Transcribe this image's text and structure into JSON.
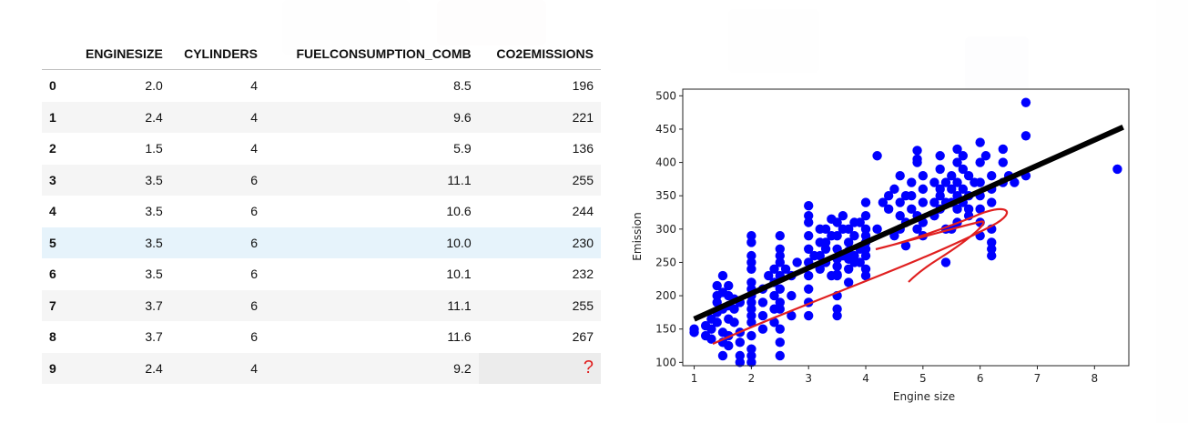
{
  "table": {
    "columns": [
      "",
      "ENGINESIZE",
      "CYLINDERS",
      "FUELCONSUMPTION_COMB",
      "CO2EMISSIONS"
    ],
    "rows": [
      [
        "0",
        "2.0",
        "4",
        "8.5",
        "196"
      ],
      [
        "1",
        "2.4",
        "4",
        "9.6",
        "221"
      ],
      [
        "2",
        "1.5",
        "4",
        "5.9",
        "136"
      ],
      [
        "3",
        "3.5",
        "6",
        "11.1",
        "255"
      ],
      [
        "4",
        "3.5",
        "6",
        "10.6",
        "244"
      ],
      [
        "5",
        "3.5",
        "6",
        "10.0",
        "230"
      ],
      [
        "6",
        "3.5",
        "6",
        "10.1",
        "232"
      ],
      [
        "7",
        "3.7",
        "6",
        "11.1",
        "255"
      ],
      [
        "8",
        "3.7",
        "6",
        "11.6",
        "267"
      ],
      [
        "9",
        "2.4",
        "4",
        "9.2",
        "?"
      ]
    ],
    "highlighted_row": 5,
    "unknown_marker_color": "#e02020"
  },
  "chart_data": {
    "type": "scatter",
    "xlabel": "Engine size",
    "ylabel": "Emission",
    "xlim": [
      0.8,
      8.6
    ],
    "ylim": [
      95,
      510
    ],
    "xticks": [
      1,
      2,
      3,
      4,
      5,
      6,
      7,
      8
    ],
    "yticks": [
      100,
      150,
      200,
      250,
      300,
      350,
      400,
      450,
      500
    ],
    "grid": false,
    "point_color": "#0000ff",
    "fit_line": {
      "x": [
        1.0,
        8.5
      ],
      "y": [
        165,
        453
      ],
      "color": "#000000"
    },
    "annotation_color": "#e02020",
    "points": [
      [
        1.0,
        150
      ],
      [
        1.0,
        145
      ],
      [
        1.2,
        155
      ],
      [
        1.2,
        140
      ],
      [
        1.3,
        135
      ],
      [
        1.3,
        150
      ],
      [
        1.4,
        160
      ],
      [
        1.4,
        175
      ],
      [
        1.5,
        145
      ],
      [
        1.5,
        130
      ],
      [
        1.5,
        110
      ],
      [
        1.6,
        165
      ],
      [
        1.6,
        140
      ],
      [
        1.6,
        200
      ],
      [
        1.7,
        160
      ],
      [
        1.7,
        180
      ],
      [
        1.8,
        190
      ],
      [
        1.8,
        145
      ],
      [
        1.8,
        130
      ],
      [
        1.6,
        185
      ],
      [
        1.4,
        190
      ],
      [
        1.5,
        205
      ],
      [
        1.6,
        215
      ],
      [
        1.5,
        230
      ],
      [
        1.4,
        200
      ],
      [
        1.4,
        215
      ],
      [
        1.6,
        125
      ],
      [
        1.3,
        165
      ],
      [
        1.5,
        180
      ],
      [
        1.7,
        195
      ],
      [
        2.0,
        200
      ],
      [
        2.0,
        180
      ],
      [
        2.0,
        160
      ],
      [
        2.0,
        140
      ],
      [
        2.0,
        120
      ],
      [
        2.0,
        220
      ],
      [
        2.0,
        240
      ],
      [
        2.0,
        260
      ],
      [
        2.0,
        280
      ],
      [
        2.0,
        290
      ],
      [
        2.0,
        110
      ],
      [
        2.0,
        100
      ],
      [
        2.0,
        170
      ],
      [
        2.0,
        250
      ],
      [
        2.0,
        210
      ],
      [
        1.8,
        110
      ],
      [
        1.8,
        100
      ],
      [
        2.0,
        190
      ],
      [
        2.2,
        170
      ],
      [
        2.2,
        190
      ],
      [
        2.2,
        210
      ],
      [
        2.3,
        230
      ],
      [
        2.4,
        200
      ],
      [
        2.4,
        220
      ],
      [
        2.4,
        180
      ],
      [
        2.4,
        240
      ],
      [
        2.5,
        250
      ],
      [
        2.5,
        270
      ],
      [
        2.5,
        290
      ],
      [
        2.5,
        210
      ],
      [
        2.5,
        180
      ],
      [
        2.5,
        230
      ],
      [
        2.5,
        150
      ],
      [
        2.5,
        130
      ],
      [
        2.5,
        110
      ],
      [
        2.7,
        230
      ],
      [
        2.7,
        200
      ],
      [
        2.8,
        250
      ],
      [
        2.7,
        170
      ],
      [
        2.5,
        260
      ],
      [
        2.5,
        190
      ],
      [
        2.6,
        240
      ],
      [
        2.4,
        160
      ],
      [
        2.2,
        150
      ],
      [
        3.0,
        230
      ],
      [
        3.0,
        250
      ],
      [
        3.0,
        270
      ],
      [
        3.0,
        290
      ],
      [
        3.0,
        310
      ],
      [
        3.0,
        335
      ],
      [
        3.0,
        210
      ],
      [
        3.0,
        190
      ],
      [
        3.0,
        170
      ],
      [
        3.0,
        320
      ],
      [
        3.2,
        240
      ],
      [
        3.2,
        260
      ],
      [
        3.2,
        280
      ],
      [
        3.3,
        300
      ],
      [
        3.3,
        250
      ],
      [
        3.3,
        270
      ],
      [
        3.4,
        230
      ],
      [
        3.4,
        290
      ],
      [
        3.5,
        230
      ],
      [
        3.5,
        244
      ],
      [
        3.5,
        255
      ],
      [
        3.5,
        232
      ],
      [
        3.5,
        270
      ],
      [
        3.5,
        290
      ],
      [
        3.5,
        310
      ],
      [
        3.5,
        200
      ],
      [
        3.5,
        180
      ],
      [
        3.5,
        170
      ],
      [
        3.6,
        260
      ],
      [
        3.6,
        300
      ],
      [
        3.7,
        255
      ],
      [
        3.7,
        267
      ],
      [
        3.7,
        280
      ],
      [
        3.7,
        300
      ],
      [
        3.7,
        240
      ],
      [
        3.7,
        220
      ],
      [
        3.8,
        260
      ],
      [
        3.8,
        310
      ],
      [
        3.8,
        290
      ],
      [
        3.9,
        270
      ],
      [
        3.9,
        250
      ],
      [
        4.0,
        230
      ],
      [
        4.0,
        260
      ],
      [
        4.0,
        280
      ],
      [
        4.0,
        300
      ],
      [
        4.0,
        320
      ],
      [
        4.0,
        340
      ],
      [
        4.0,
        270
      ],
      [
        4.0,
        240
      ],
      [
        3.6,
        320
      ],
      [
        3.4,
        315
      ],
      [
        3.3,
        280
      ],
      [
        3.2,
        300
      ],
      [
        3.1,
        260
      ],
      [
        3.8,
        250
      ],
      [
        3.9,
        310
      ],
      [
        4.0,
        290
      ],
      [
        4.2,
        410
      ],
      [
        4.2,
        300
      ],
      [
        4.3,
        340
      ],
      [
        4.4,
        330
      ],
      [
        4.4,
        350
      ],
      [
        4.5,
        290
      ],
      [
        4.5,
        360
      ],
      [
        4.6,
        300
      ],
      [
        4.6,
        320
      ],
      [
        4.6,
        340
      ],
      [
        4.6,
        380
      ],
      [
        4.7,
        310
      ],
      [
        4.7,
        350
      ],
      [
        4.8,
        330
      ],
      [
        4.8,
        370
      ],
      [
        4.8,
        350
      ],
      [
        4.9,
        300
      ],
      [
        4.9,
        320
      ],
      [
        4.9,
        400
      ],
      [
        5.0,
        310
      ],
      [
        5.0,
        340
      ],
      [
        5.0,
        360
      ],
      [
        5.0,
        380
      ],
      [
        5.0,
        290
      ],
      [
        5.2,
        320
      ],
      [
        5.2,
        340
      ],
      [
        5.2,
        370
      ],
      [
        5.3,
        350
      ],
      [
        5.3,
        390
      ],
      [
        5.3,
        410
      ],
      [
        5.3,
        330
      ],
      [
        5.3,
        360
      ],
      [
        5.4,
        340
      ],
      [
        5.4,
        370
      ],
      [
        5.4,
        300
      ],
      [
        5.5,
        380
      ],
      [
        5.5,
        360
      ],
      [
        5.5,
        340
      ],
      [
        5.6,
        420
      ],
      [
        5.6,
        400
      ],
      [
        5.6,
        370
      ],
      [
        5.6,
        350
      ],
      [
        5.6,
        330
      ],
      [
        5.6,
        310
      ],
      [
        5.7,
        390
      ],
      [
        5.7,
        360
      ],
      [
        5.7,
        410
      ],
      [
        5.7,
        340
      ],
      [
        5.8,
        380
      ],
      [
        5.8,
        350
      ],
      [
        5.8,
        330
      ],
      [
        5.8,
        320
      ],
      [
        5.9,
        370
      ],
      [
        6.0,
        430
      ],
      [
        6.0,
        400
      ],
      [
        6.0,
        370
      ],
      [
        6.0,
        350
      ],
      [
        6.0,
        330
      ],
      [
        6.0,
        310
      ],
      [
        6.0,
        290
      ],
      [
        6.1,
        410
      ],
      [
        6.2,
        380
      ],
      [
        6.2,
        360
      ],
      [
        6.2,
        340
      ],
      [
        6.2,
        300
      ],
      [
        6.2,
        280
      ],
      [
        6.2,
        270
      ],
      [
        6.2,
        260
      ],
      [
        6.4,
        420
      ],
      [
        6.4,
        400
      ],
      [
        6.4,
        370
      ],
      [
        6.5,
        380
      ],
      [
        6.6,
        370
      ],
      [
        6.8,
        490
      ],
      [
        6.8,
        440
      ],
      [
        6.8,
        380
      ],
      [
        8.4,
        390
      ],
      [
        5.5,
        300
      ],
      [
        4.9,
        418
      ],
      [
        4.9,
        405
      ],
      [
        5.4,
        250
      ],
      [
        4.7,
        275
      ]
    ]
  }
}
